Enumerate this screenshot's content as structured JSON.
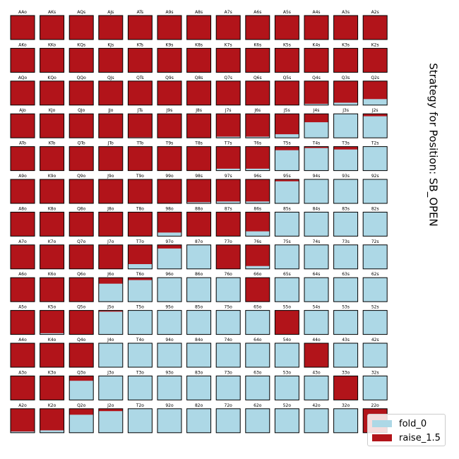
{
  "title": "Strategy for Position: SB_OPEN",
  "colors": {
    "fold": "#add8e6",
    "raise": "#b2141a"
  },
  "legend": [
    {
      "key": "fold",
      "label": "fold_0"
    },
    {
      "key": "raise",
      "label": "raise_1.5"
    }
  ],
  "chart_data": {
    "type": "heatmap",
    "title": "Strategy for Position: SB_OPEN",
    "series": [
      {
        "name": "fold_0",
        "color": "#add8e6"
      },
      {
        "name": "raise_1.5",
        "color": "#b2141a"
      }
    ],
    "legend_position": "bottom-right",
    "rows": [
      [
        [
          "AAo",
          1
        ],
        [
          "AKs",
          1
        ],
        [
          "AQs",
          1
        ],
        [
          "AJs",
          1
        ],
        [
          "ATs",
          1
        ],
        [
          "A9s",
          1
        ],
        [
          "A8s",
          1
        ],
        [
          "A7s",
          1
        ],
        [
          "A6s",
          1
        ],
        [
          "A5s",
          1
        ],
        [
          "A4s",
          1
        ],
        [
          "A3s",
          1
        ],
        [
          "A2s",
          1
        ]
      ],
      [
        [
          "AKo",
          1
        ],
        [
          "KKo",
          1
        ],
        [
          "KQs",
          1
        ],
        [
          "KJs",
          1
        ],
        [
          "KTs",
          1
        ],
        [
          "K9s",
          1
        ],
        [
          "K8s",
          1
        ],
        [
          "K7s",
          1
        ],
        [
          "K6s",
          1
        ],
        [
          "K5s",
          1
        ],
        [
          "K4s",
          1
        ],
        [
          "K3s",
          1
        ],
        [
          "K2s",
          1
        ]
      ],
      [
        [
          "AQo",
          1
        ],
        [
          "KQo",
          1
        ],
        [
          "QQo",
          1
        ],
        [
          "QJs",
          1
        ],
        [
          "QTs",
          1
        ],
        [
          "Q9s",
          1
        ],
        [
          "Q8s",
          1
        ],
        [
          "Q7s",
          1
        ],
        [
          "Q6s",
          1
        ],
        [
          "Q5s",
          1
        ],
        [
          "Q4s",
          0.95
        ],
        [
          "Q3s",
          0.9
        ],
        [
          "Q2s",
          0.75
        ]
      ],
      [
        [
          "AJo",
          1
        ],
        [
          "KJo",
          1
        ],
        [
          "QJo",
          1
        ],
        [
          "JJo",
          1
        ],
        [
          "JTs",
          0.98
        ],
        [
          "J9s",
          1
        ],
        [
          "J8s",
          1
        ],
        [
          "J7s",
          0.95
        ],
        [
          "J6s",
          0.95
        ],
        [
          "J5s",
          0.85
        ],
        [
          "J4s",
          0.35
        ],
        [
          "J3s",
          0
        ],
        [
          "J2s",
          0.1
        ]
      ],
      [
        [
          "ATo",
          1
        ],
        [
          "KTo",
          1
        ],
        [
          "QTo",
          1
        ],
        [
          "JTo",
          1
        ],
        [
          "TTo",
          1
        ],
        [
          "T9s",
          1
        ],
        [
          "T8s",
          1
        ],
        [
          "T7s",
          0.92
        ],
        [
          "T6s",
          0.92
        ],
        [
          "T5s",
          0.15
        ],
        [
          "T4s",
          0.06
        ],
        [
          "T3s",
          0.12
        ],
        [
          "T2s",
          0
        ]
      ],
      [
        [
          "A9o",
          1
        ],
        [
          "K9o",
          1
        ],
        [
          "Q9o",
          1
        ],
        [
          "J9o",
          1
        ],
        [
          "T9o",
          1
        ],
        [
          "99o",
          1
        ],
        [
          "98s",
          0.95
        ],
        [
          "97s",
          0.92
        ],
        [
          "96s",
          0.92
        ],
        [
          "95s",
          0.08
        ],
        [
          "94s",
          0
        ],
        [
          "93s",
          0
        ],
        [
          "92s",
          0
        ]
      ],
      [
        [
          "A8o",
          1
        ],
        [
          "K8o",
          1
        ],
        [
          "Q8o",
          1
        ],
        [
          "J8o",
          1
        ],
        [
          "T8o",
          1
        ],
        [
          "98o",
          0.85
        ],
        [
          "88o",
          1
        ],
        [
          "87s",
          1
        ],
        [
          "86s",
          0.8
        ],
        [
          "85s",
          0
        ],
        [
          "84s",
          0
        ],
        [
          "83s",
          0
        ],
        [
          "82s",
          0
        ]
      ],
      [
        [
          "A7o",
          1
        ],
        [
          "K7o",
          1
        ],
        [
          "Q7o",
          1
        ],
        [
          "J7o",
          1
        ],
        [
          "T7o",
          0.8
        ],
        [
          "97o",
          0.15
        ],
        [
          "87o",
          0
        ],
        [
          "77o",
          1
        ],
        [
          "76s",
          0.88
        ],
        [
          "75s",
          0
        ],
        [
          "74s",
          0
        ],
        [
          "73s",
          0
        ],
        [
          "72s",
          0
        ]
      ],
      [
        [
          "A6o",
          1
        ],
        [
          "K6o",
          1
        ],
        [
          "Q6o",
          1
        ],
        [
          "J6o",
          0.25
        ],
        [
          "T6o",
          0.1
        ],
        [
          "96o",
          0
        ],
        [
          "86o",
          0
        ],
        [
          "76o",
          0
        ],
        [
          "66o",
          1
        ],
        [
          "65s",
          0
        ],
        [
          "64s",
          0
        ],
        [
          "63s",
          0
        ],
        [
          "62s",
          0
        ]
      ],
      [
        [
          "A5o",
          1
        ],
        [
          "K5o",
          0.95
        ],
        [
          "Q5o",
          1
        ],
        [
          "J5o",
          0.05
        ],
        [
          "T5o",
          0
        ],
        [
          "95o",
          0
        ],
        [
          "85o",
          0
        ],
        [
          "75o",
          0
        ],
        [
          "65o",
          0
        ],
        [
          "55o",
          1
        ],
        [
          "54s",
          0
        ],
        [
          "53s",
          0
        ],
        [
          "52s",
          0
        ]
      ],
      [
        [
          "A4o",
          1
        ],
        [
          "K4o",
          1
        ],
        [
          "Q4o",
          1
        ],
        [
          "J4o",
          0
        ],
        [
          "T4o",
          0
        ],
        [
          "94o",
          0
        ],
        [
          "84o",
          0
        ],
        [
          "74o",
          0
        ],
        [
          "64o",
          0
        ],
        [
          "54o",
          0
        ],
        [
          "44o",
          1
        ],
        [
          "43s",
          0
        ],
        [
          "42s",
          0
        ]
      ],
      [
        [
          "A3o",
          1
        ],
        [
          "K3o",
          1
        ],
        [
          "Q3o",
          0.2
        ],
        [
          "J3o",
          0
        ],
        [
          "T3o",
          0
        ],
        [
          "93o",
          0
        ],
        [
          "83o",
          0
        ],
        [
          "73o",
          0
        ],
        [
          "63o",
          0
        ],
        [
          "53o",
          0
        ],
        [
          "43o",
          0
        ],
        [
          "33o",
          1
        ],
        [
          "32s",
          0
        ]
      ],
      [
        [
          "A2o",
          0.95
        ],
        [
          "K2o",
          0.9
        ],
        [
          "Q2o",
          0.25
        ],
        [
          "J2o",
          0.1
        ],
        [
          "T2o",
          0
        ],
        [
          "92o",
          0
        ],
        [
          "82o",
          0
        ],
        [
          "72o",
          0
        ],
        [
          "62o",
          0
        ],
        [
          "52o",
          0
        ],
        [
          "42o",
          0
        ],
        [
          "32o",
          0
        ],
        [
          "22o",
          1
        ]
      ]
    ]
  }
}
